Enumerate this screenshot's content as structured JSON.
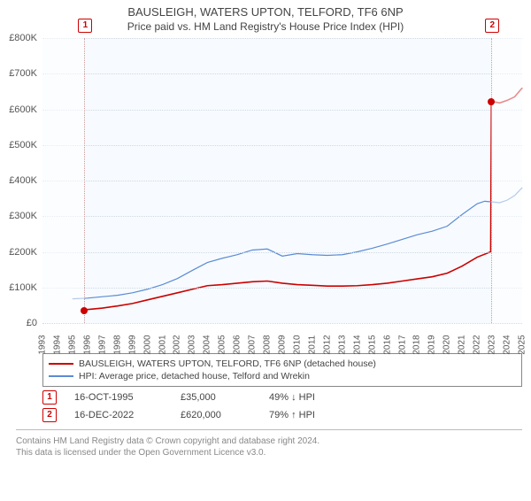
{
  "title": "BAUSLEIGH, WATERS UPTON, TELFORD, TF6 6NP",
  "subtitle": "Price paid vs. HM Land Registry's House Price Index (HPI)",
  "chart": {
    "type": "line",
    "background_color": "#f7fbff",
    "grid_color": "#cfd8e3",
    "ylim": [
      0,
      800
    ],
    "ytick_step": 100,
    "ytick_prefix": "£",
    "ytick_suffix": "K",
    "xlim": [
      1993,
      2025
    ],
    "xtick_step": 1,
    "fade_bands": [
      {
        "from": 1993,
        "to": 1995.8
      },
      {
        "from": 2022.95,
        "to": 2025
      }
    ],
    "vlines": [
      1995.8,
      2022.95
    ],
    "markers": [
      {
        "id": "1",
        "x": 1995.8,
        "y": 35
      },
      {
        "id": "2",
        "x": 2022.95,
        "y": 620
      }
    ],
    "series": [
      {
        "name": "price_paid",
        "label": "BAUSLEIGH, WATERS UPTON, TELFORD, TF6 6NP (detached house)",
        "color": "#cc0000",
        "width": 1.6,
        "data": [
          [
            1995.8,
            35
          ],
          [
            1996,
            38
          ],
          [
            1997,
            42
          ],
          [
            1998,
            48
          ],
          [
            1999,
            55
          ],
          [
            2000,
            65
          ],
          [
            2001,
            75
          ],
          [
            2002,
            85
          ],
          [
            2003,
            95
          ],
          [
            2004,
            105
          ],
          [
            2005,
            108
          ],
          [
            2006,
            112
          ],
          [
            2007,
            116
          ],
          [
            2008,
            118
          ],
          [
            2009,
            112
          ],
          [
            2010,
            108
          ],
          [
            2011,
            106
          ],
          [
            2012,
            104
          ],
          [
            2013,
            104
          ],
          [
            2014,
            105
          ],
          [
            2015,
            108
          ],
          [
            2016,
            112
          ],
          [
            2017,
            118
          ],
          [
            2018,
            124
          ],
          [
            2019,
            130
          ],
          [
            2020,
            140
          ],
          [
            2021,
            160
          ],
          [
            2022,
            185
          ],
          [
            2022.9,
            200
          ],
          [
            2022.95,
            620
          ],
          [
            2023,
            622
          ],
          [
            2023.5,
            618
          ],
          [
            2024,
            625
          ],
          [
            2024.5,
            635
          ],
          [
            2025,
            660
          ]
        ]
      },
      {
        "name": "hpi",
        "label": "HPI: Average price, detached house, Telford and Wrekin",
        "color": "#5b8bd4",
        "width": 1.2,
        "data": [
          [
            1995,
            68
          ],
          [
            1996,
            70
          ],
          [
            1997,
            74
          ],
          [
            1998,
            78
          ],
          [
            1999,
            85
          ],
          [
            2000,
            95
          ],
          [
            2001,
            108
          ],
          [
            2002,
            125
          ],
          [
            2003,
            148
          ],
          [
            2004,
            170
          ],
          [
            2005,
            182
          ],
          [
            2006,
            192
          ],
          [
            2007,
            205
          ],
          [
            2008,
            208
          ],
          [
            2009,
            188
          ],
          [
            2010,
            195
          ],
          [
            2011,
            192
          ],
          [
            2012,
            190
          ],
          [
            2013,
            192
          ],
          [
            2014,
            200
          ],
          [
            2015,
            210
          ],
          [
            2016,
            222
          ],
          [
            2017,
            235
          ],
          [
            2018,
            248
          ],
          [
            2019,
            258
          ],
          [
            2020,
            272
          ],
          [
            2021,
            305
          ],
          [
            2022,
            335
          ],
          [
            2022.5,
            342
          ],
          [
            2023,
            340
          ],
          [
            2023.5,
            338
          ],
          [
            2024,
            345
          ],
          [
            2024.5,
            358
          ],
          [
            2025,
            380
          ]
        ]
      }
    ]
  },
  "legend": {
    "items": [
      {
        "color": "#cc0000",
        "label": "BAUSLEIGH, WATERS UPTON, TELFORD, TF6 6NP (detached house)"
      },
      {
        "color": "#5b8bd4",
        "label": "HPI: Average price, detached house, Telford and Wrekin"
      }
    ]
  },
  "transactions": [
    {
      "marker": "1",
      "date": "16-OCT-1995",
      "price": "£35,000",
      "pct": "49% ↓ HPI"
    },
    {
      "marker": "2",
      "date": "16-DEC-2022",
      "price": "£620,000",
      "pct": "79% ↑ HPI"
    }
  ],
  "attribution": {
    "line1": "Contains HM Land Registry data © Crown copyright and database right 2024.",
    "line2": "This data is licensed under the Open Government Licence v3.0."
  }
}
